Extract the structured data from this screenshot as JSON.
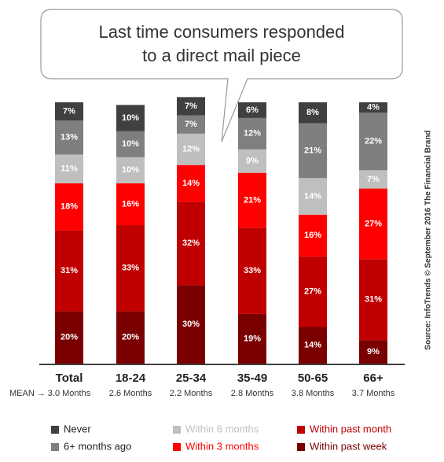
{
  "chart_data": {
    "type": "stacked_bar",
    "title": "Last time consumers responded to a direct mail piece",
    "source": "Source: InfoTrends © September 2016 The Financial Brand",
    "categories": [
      "Total",
      "18-24",
      "25-34",
      "35-49",
      "50-65",
      "66+"
    ],
    "mean_label": "MEAN →",
    "means": [
      "3.0 Months",
      "2.6 Months",
      "2.2 Months",
      "2.8 Months",
      "3.8 Months",
      "3.7 Months"
    ],
    "series": [
      {
        "name": "Never",
        "color": "#404040",
        "values": [
          7,
          10,
          7,
          6,
          8,
          4
        ],
        "value_labels": [
          "7%",
          "10%",
          "7%",
          "6%",
          "8%",
          "4%"
        ]
      },
      {
        "name": "6+ months ago",
        "color": "#7f7f7f",
        "values": [
          13,
          10,
          7,
          12,
          21,
          22
        ],
        "value_labels": [
          "13%",
          "10%",
          "7%",
          "12%",
          "21%",
          "22%"
        ]
      },
      {
        "name": "Within 6 months",
        "color": "#bfbfbf",
        "values": [
          11,
          10,
          12,
          9,
          14,
          7
        ],
        "value_labels": [
          "11%",
          "10%",
          "12%",
          "9%",
          "14%",
          "7%"
        ]
      },
      {
        "name": "Within 3 months",
        "color": "#ff0000",
        "values": [
          18,
          16,
          14,
          21,
          16,
          27
        ],
        "value_labels": [
          "18%",
          "16%",
          "14%",
          "21%",
          "16%",
          "27%"
        ]
      },
      {
        "name": "Within past month",
        "color": "#c00000",
        "values": [
          31,
          33,
          32,
          33,
          27,
          31
        ],
        "value_labels": [
          "31%",
          "33%",
          "32%",
          "33%",
          "27%",
          "31%"
        ]
      },
      {
        "name": "Within past week",
        "color": "#7a0000",
        "values": [
          20,
          20,
          30,
          19,
          14,
          9
        ],
        "value_labels": [
          "20%",
          "20%",
          "30%",
          "19%",
          "14%",
          "9%"
        ]
      }
    ]
  }
}
